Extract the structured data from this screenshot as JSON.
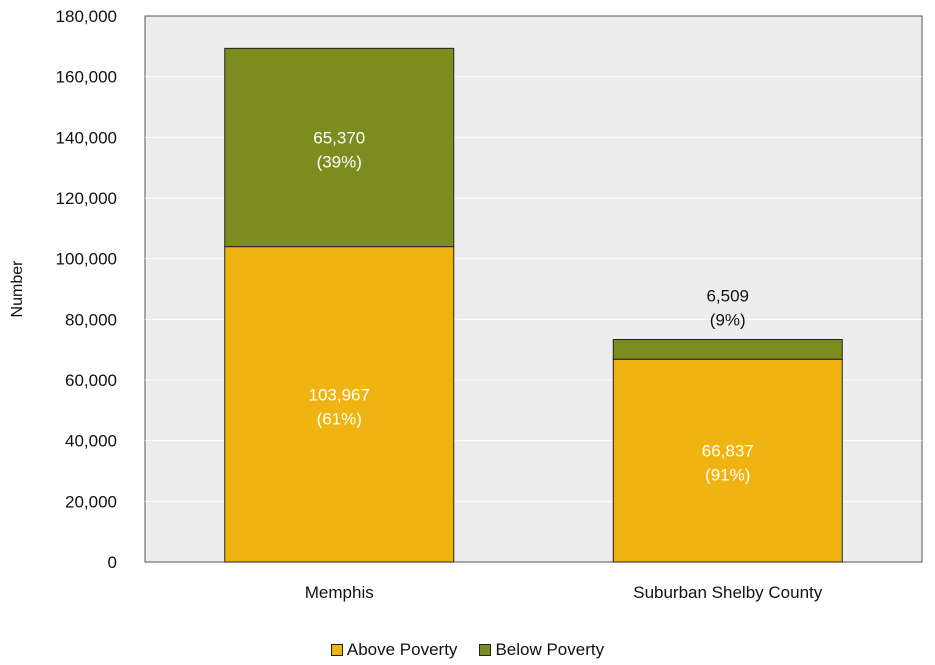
{
  "chart_data": {
    "type": "bar",
    "stacked": true,
    "categories": [
      "Memphis",
      "Suburban Shelby County"
    ],
    "series": [
      {
        "name": "Above Poverty",
        "color": "#F0B412",
        "values": [
          103967,
          66837
        ],
        "labels": [
          "103,967",
          "66,837"
        ],
        "pct_labels": [
          "(61%)",
          "(91%)"
        ]
      },
      {
        "name": "Below Poverty",
        "color": "#7C8C1E",
        "values": [
          65370,
          6509
        ],
        "labels": [
          "65,370",
          "6,509"
        ],
        "pct_labels": [
          "(39%)",
          "(9%)"
        ]
      }
    ],
    "title": "",
    "xlabel": "",
    "ylabel": "Number",
    "ylim": [
      0,
      180000
    ],
    "yticks": [
      "0",
      "20,000",
      "40,000",
      "60,000",
      "80,000",
      "100,000",
      "120,000",
      "140,000",
      "160,000",
      "180,000"
    ],
    "plot_background": "#EDEDED",
    "grid": true,
    "legend_position": "bottom"
  }
}
